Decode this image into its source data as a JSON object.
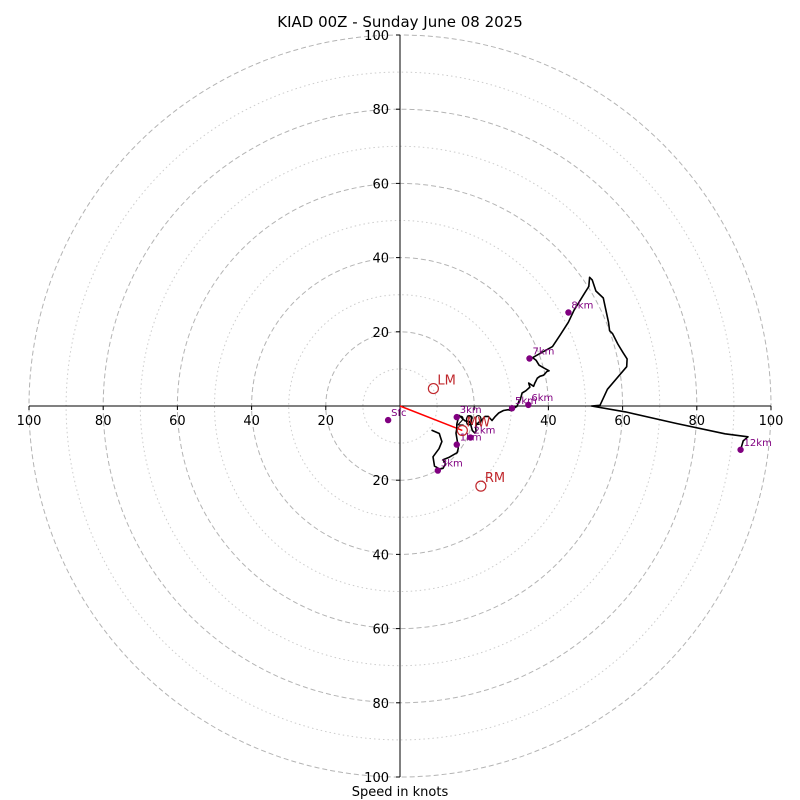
{
  "chart_data": {
    "type": "line",
    "subtype": "hodograph",
    "title": "KIAD 00Z - Sunday June 08 2025",
    "xlabel": "Speed in knots",
    "axis_range": [
      -100,
      100
    ],
    "ring_major": [
      20,
      40,
      60,
      80,
      100
    ],
    "ring_minor": [
      10,
      30,
      50,
      70,
      90
    ],
    "x_ticks": [
      {
        "value": -100,
        "label": "100"
      },
      {
        "value": -80,
        "label": "80"
      },
      {
        "value": -60,
        "label": "60"
      },
      {
        "value": -40,
        "label": "40"
      },
      {
        "value": -20,
        "label": "20"
      },
      {
        "value": 20,
        "label": "20"
      },
      {
        "value": 40,
        "label": "40"
      },
      {
        "value": 60,
        "label": "60"
      },
      {
        "value": 80,
        "label": "80"
      },
      {
        "value": 100,
        "label": "100"
      }
    ],
    "y_ticks": [
      {
        "value": 100,
        "label": "100"
      },
      {
        "value": 80,
        "label": "80"
      },
      {
        "value": 60,
        "label": "60"
      },
      {
        "value": 40,
        "label": "40"
      },
      {
        "value": 20,
        "label": "20"
      },
      {
        "value": -20,
        "label": "20"
      },
      {
        "value": -40,
        "label": "40"
      },
      {
        "value": -60,
        "label": "60"
      },
      {
        "value": -80,
        "label": "80"
      },
      {
        "value": -100,
        "label": "100"
      }
    ],
    "center_label": "20",
    "wind_trace": [
      [
        8.5,
        -6.5
      ],
      [
        10.6,
        -7.4
      ],
      [
        10.8,
        -8.1
      ],
      [
        11.3,
        -9.6
      ],
      [
        10.5,
        -11.5
      ],
      [
        8.9,
        -13.7
      ],
      [
        9.3,
        -16.2
      ],
      [
        10.7,
        -17
      ],
      [
        11.6,
        -16.8
      ],
      [
        12.3,
        -15.6
      ],
      [
        11.6,
        -14.5
      ],
      [
        13.3,
        -13.8
      ],
      [
        15.4,
        -12.6
      ],
      [
        15.7,
        -11.5
      ],
      [
        15.6,
        -10.4
      ],
      [
        15.4,
        -9.1
      ],
      [
        15.1,
        -7.3
      ],
      [
        15.3,
        -6.1
      ],
      [
        15.3,
        -4.9
      ],
      [
        15.9,
        -2.5
      ],
      [
        17.5,
        -4
      ],
      [
        18.7,
        -4.2
      ],
      [
        19,
        -4.8
      ],
      [
        19.5,
        -6.6
      ],
      [
        20.2,
        -7.3
      ],
      [
        20.5,
        -6.8
      ],
      [
        20.4,
        -6
      ],
      [
        20.5,
        -5.2
      ],
      [
        21.2,
        -4.4
      ],
      [
        21.9,
        -4
      ],
      [
        22.9,
        -2.8
      ],
      [
        23.8,
        -2.8
      ],
      [
        24.8,
        -3.9
      ],
      [
        25.7,
        -2.8
      ],
      [
        26.6,
        -1.9
      ],
      [
        27.9,
        -1.2
      ],
      [
        29.2,
        -1
      ],
      [
        30.1,
        -1.3
      ],
      [
        30.5,
        -0.7
      ],
      [
        31.5,
        -0.1
      ],
      [
        32.1,
        1.4
      ],
      [
        32.4,
        1.6
      ],
      [
        32.7,
        2.7
      ],
      [
        32.9,
        3.5
      ],
      [
        33.9,
        4.1
      ],
      [
        35,
        5.1
      ],
      [
        34.7,
        6.2
      ],
      [
        36,
        5.3
      ],
      [
        36.3,
        6.1
      ],
      [
        37,
        7.5
      ],
      [
        37.7,
        8
      ],
      [
        38.7,
        8.3
      ],
      [
        39.6,
        9.3
      ],
      [
        40.2,
        9.5
      ],
      [
        38.7,
        10.3
      ],
      [
        37.5,
        11
      ],
      [
        36.7,
        12.3
      ],
      [
        35.8,
        13
      ],
      [
        35.1,
        12.7
      ],
      [
        41.1,
        16
      ],
      [
        43.2,
        19.2
      ],
      [
        45.4,
        22.6
      ],
      [
        46.9,
        25.8
      ],
      [
        49.8,
        30.5
      ],
      [
        50.9,
        32.2
      ],
      [
        51.1,
        34.7
      ],
      [
        51.8,
        34
      ],
      [
        52.8,
        31
      ],
      [
        54.8,
        29.1
      ],
      [
        55.2,
        27.2
      ],
      [
        56.2,
        22.6
      ],
      [
        56.5,
        20.3
      ],
      [
        57.3,
        19.5
      ],
      [
        58.7,
        16.7
      ],
      [
        60.1,
        14.4
      ],
      [
        61.2,
        12.7
      ],
      [
        61.1,
        10.6
      ],
      [
        55.9,
        4.5
      ],
      [
        53.9,
        0.2
      ],
      [
        51.6,
        0
      ],
      [
        60.8,
        -1.6
      ],
      [
        74.4,
        -4.7
      ],
      [
        87.6,
        -7.5
      ],
      [
        93.8,
        -8.3
      ],
      [
        92.5,
        -9.4
      ],
      [
        91.8,
        -11.8
      ]
    ],
    "height_markers": [
      {
        "label": "Sfc",
        "u": -3.2,
        "v": -3.8
      },
      {
        "label": "1km",
        "u": 15.3,
        "v": -10.4
      },
      {
        "label": "2km",
        "u": 19,
        "v": -8.5
      },
      {
        "label": "3km",
        "u": 10.2,
        "v": -17.4
      },
      {
        "label": "3km",
        "u": 15.3,
        "v": -3
      },
      {
        "label": "5km",
        "u": 30.2,
        "v": -0.6
      },
      {
        "label": "6km",
        "u": 34.6,
        "v": 0.3
      },
      {
        "label": "7km",
        "u": 34.9,
        "v": 12.8
      },
      {
        "label": "8km",
        "u": 45.4,
        "v": 25.2
      },
      {
        "label": "12km",
        "u": 91.8,
        "v": -11.8
      }
    ],
    "motion_markers": [
      {
        "label": "LM",
        "u": 9,
        "v": 4.7
      },
      {
        "label": "MW",
        "u": 16.8,
        "v": -6.6
      },
      {
        "label": "RM",
        "u": 21.8,
        "v": -21.6
      }
    ],
    "red_segment": [
      [
        0,
        0
      ],
      [
        16.8,
        -6.6
      ]
    ],
    "colors": {
      "trace": "#000000",
      "height_marker": "#800080",
      "motion_marker": "#c0282d",
      "ring": "#b4b4b4",
      "axis": "#000000"
    }
  }
}
